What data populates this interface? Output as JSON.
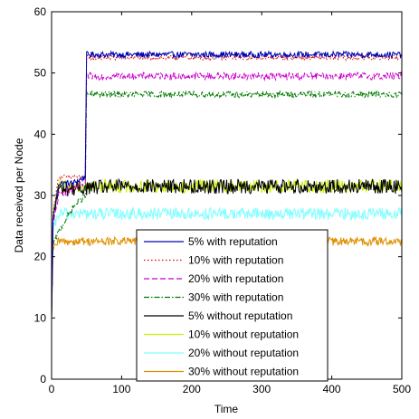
{
  "chart_data": {
    "type": "line",
    "title": "",
    "xlabel": "Time",
    "ylabel": "Data received per Node",
    "xlim": [
      0,
      500
    ],
    "ylim": [
      0,
      60
    ],
    "xticks": [
      0,
      100,
      200,
      300,
      400,
      500
    ],
    "yticks": [
      0,
      10,
      20,
      30,
      40,
      50,
      60
    ],
    "legend_position": "bottom-center",
    "grid": false,
    "series": [
      {
        "name": "5% with reputation",
        "color": "#0000b0",
        "dash": "solid",
        "ramp": {
          "start": 32,
          "end_t": 48
        },
        "keypoints": [
          [
            0,
            10
          ],
          [
            2,
            26
          ],
          [
            10,
            32
          ],
          [
            30,
            32
          ],
          [
            48,
            33
          ],
          [
            50,
            53
          ],
          [
            100,
            53
          ],
          [
            200,
            53
          ],
          [
            300,
            53
          ],
          [
            400,
            53
          ],
          [
            500,
            53
          ]
        ],
        "noise": 0.5
      },
      {
        "name": "10% with reputation",
        "color": "#e00000",
        "dash": "dotted",
        "keypoints": [
          [
            0,
            10
          ],
          [
            2,
            27
          ],
          [
            10,
            33
          ],
          [
            30,
            33
          ],
          [
            48,
            33
          ],
          [
            50,
            52.5
          ],
          [
            100,
            52.5
          ],
          [
            200,
            52.5
          ],
          [
            300,
            52.5
          ],
          [
            400,
            52.5
          ],
          [
            500,
            52.5
          ]
        ],
        "noise": 0.4
      },
      {
        "name": "20%  with reputation",
        "color": "#cc00cc",
        "dash": "dashed",
        "keypoints": [
          [
            0,
            10
          ],
          [
            2,
            25
          ],
          [
            10,
            30
          ],
          [
            30,
            31
          ],
          [
            48,
            32
          ],
          [
            50,
            49.5
          ],
          [
            100,
            49.5
          ],
          [
            200,
            49.5
          ],
          [
            300,
            49.5
          ],
          [
            400,
            49.5
          ],
          [
            500,
            49.5
          ]
        ],
        "noise": 0.6
      },
      {
        "name": "30%  with reputation",
        "color": "#007a00",
        "dash": "dashdot",
        "keypoints": [
          [
            0,
            10
          ],
          [
            2,
            22
          ],
          [
            10,
            24
          ],
          [
            30,
            28
          ],
          [
            48,
            30
          ],
          [
            50,
            46.5
          ],
          [
            100,
            46.5
          ],
          [
            200,
            46.5
          ],
          [
            300,
            46.5
          ],
          [
            400,
            46.5
          ],
          [
            500,
            46.5
          ]
        ],
        "noise": 0.5
      },
      {
        "name": "5% without reputation",
        "color": "#000000",
        "dash": "solid",
        "keypoints": [
          [
            0,
            10
          ],
          [
            2,
            26
          ],
          [
            10,
            31
          ],
          [
            100,
            31.5
          ],
          [
            200,
            31.5
          ],
          [
            300,
            31.5
          ],
          [
            400,
            31.5
          ],
          [
            500,
            31.5
          ]
        ],
        "noise": 1.2
      },
      {
        "name": "10% without reputation",
        "color": "#c8f000",
        "dash": "solid",
        "keypoints": [
          [
            0,
            10
          ],
          [
            2,
            27
          ],
          [
            10,
            31.5
          ],
          [
            100,
            31.5
          ],
          [
            200,
            31.5
          ],
          [
            300,
            31.5
          ],
          [
            400,
            31.5
          ],
          [
            500,
            31.5
          ]
        ],
        "noise": 1.1
      },
      {
        "name": "20% without reputation",
        "color": "#7fffff",
        "dash": "solid",
        "keypoints": [
          [
            0,
            10
          ],
          [
            2,
            24
          ],
          [
            10,
            27
          ],
          [
            100,
            27
          ],
          [
            200,
            27
          ],
          [
            300,
            27
          ],
          [
            400,
            27
          ],
          [
            500,
            27
          ]
        ],
        "noise": 1.0
      },
      {
        "name": "30% without reputation",
        "color": "#e09000",
        "dash": "solid",
        "keypoints": [
          [
            0,
            10
          ],
          [
            2,
            21
          ],
          [
            10,
            22.5
          ],
          [
            100,
            22.5
          ],
          [
            200,
            22.5
          ],
          [
            300,
            22.5
          ],
          [
            400,
            22.5
          ],
          [
            500,
            22.5
          ]
        ],
        "noise": 0.7
      }
    ]
  }
}
